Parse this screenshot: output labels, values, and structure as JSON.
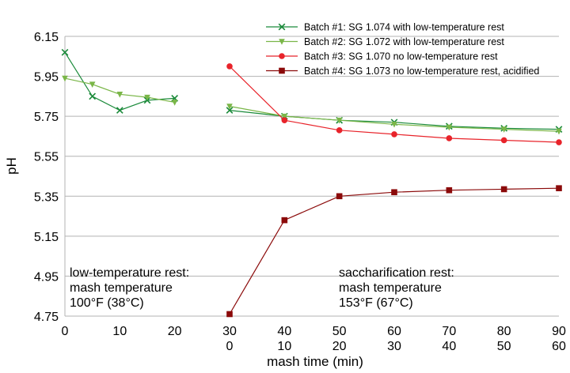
{
  "chart_data": {
    "type": "line",
    "title": "",
    "xlabel": "mash time (min)",
    "ylabel": "pH",
    "ylim": [
      4.75,
      6.15
    ],
    "yticks": [
      "6.15",
      "5.95",
      "5.75",
      "5.55",
      "5.35",
      "5.15",
      "4.95",
      "4.75"
    ],
    "xlim": [
      0,
      90
    ],
    "xticks_top": [
      "0",
      "10",
      "20",
      "30",
      "40",
      "50",
      "60",
      "70",
      "80",
      "90"
    ],
    "xticks_bottom": [
      "0",
      "10",
      "20",
      "30",
      "40",
      "50",
      "60"
    ],
    "grid": "horizontal",
    "legend_position": "top-right",
    "series": [
      {
        "name": "Batch #1: SG 1.074 with low-temperature rest",
        "color": "#1a8a3a",
        "marker": "x",
        "segments": [
          [
            [
              0,
              6.07
            ],
            [
              5,
              5.85
            ],
            [
              10,
              5.78
            ],
            [
              15,
              5.83
            ],
            [
              20,
              5.84
            ]
          ],
          [
            [
              30,
              5.78
            ],
            [
              40,
              5.75
            ],
            [
              50,
              5.73
            ],
            [
              60,
              5.72
            ],
            [
              70,
              5.7
            ],
            [
              80,
              5.69
            ],
            [
              90,
              5.685
            ]
          ]
        ]
      },
      {
        "name": "Batch #2: SG 1.072 with low-temperature rest",
        "color": "#7ab648",
        "marker": "triangle-down",
        "segments": [
          [
            [
              0,
              5.94
            ],
            [
              5,
              5.91
            ],
            [
              10,
              5.86
            ],
            [
              15,
              5.845
            ],
            [
              20,
              5.82
            ]
          ],
          [
            [
              30,
              5.8
            ],
            [
              40,
              5.75
            ],
            [
              50,
              5.73
            ],
            [
              60,
              5.71
            ],
            [
              70,
              5.695
            ],
            [
              80,
              5.685
            ],
            [
              90,
              5.675
            ]
          ]
        ]
      },
      {
        "name": "Batch #3: SG 1.070 no low-temperature rest",
        "color": "#e8232a",
        "marker": "circle",
        "segments": [
          [
            [
              30,
              6.0
            ],
            [
              40,
              5.73
            ],
            [
              50,
              5.68
            ],
            [
              60,
              5.66
            ],
            [
              70,
              5.64
            ],
            [
              80,
              5.63
            ],
            [
              90,
              5.62
            ]
          ]
        ]
      },
      {
        "name": "Batch #4: SG 1.073 no low-temperature rest, acidified",
        "color": "#8b0a0a",
        "marker": "square",
        "segments": [
          [
            [
              30,
              4.76
            ],
            [
              40,
              5.23
            ],
            [
              50,
              5.35
            ],
            [
              60,
              5.37
            ],
            [
              70,
              5.38
            ],
            [
              80,
              5.385
            ],
            [
              90,
              5.39
            ]
          ]
        ]
      }
    ],
    "annotations": [
      {
        "id": "low",
        "lines": [
          "low-temperature rest:",
          "mash temperature",
          "100°F (38°C)"
        ]
      },
      {
        "id": "sacch",
        "lines": [
          "saccharification rest:",
          "mash temperature",
          "153°F (67°C)"
        ]
      }
    ]
  }
}
